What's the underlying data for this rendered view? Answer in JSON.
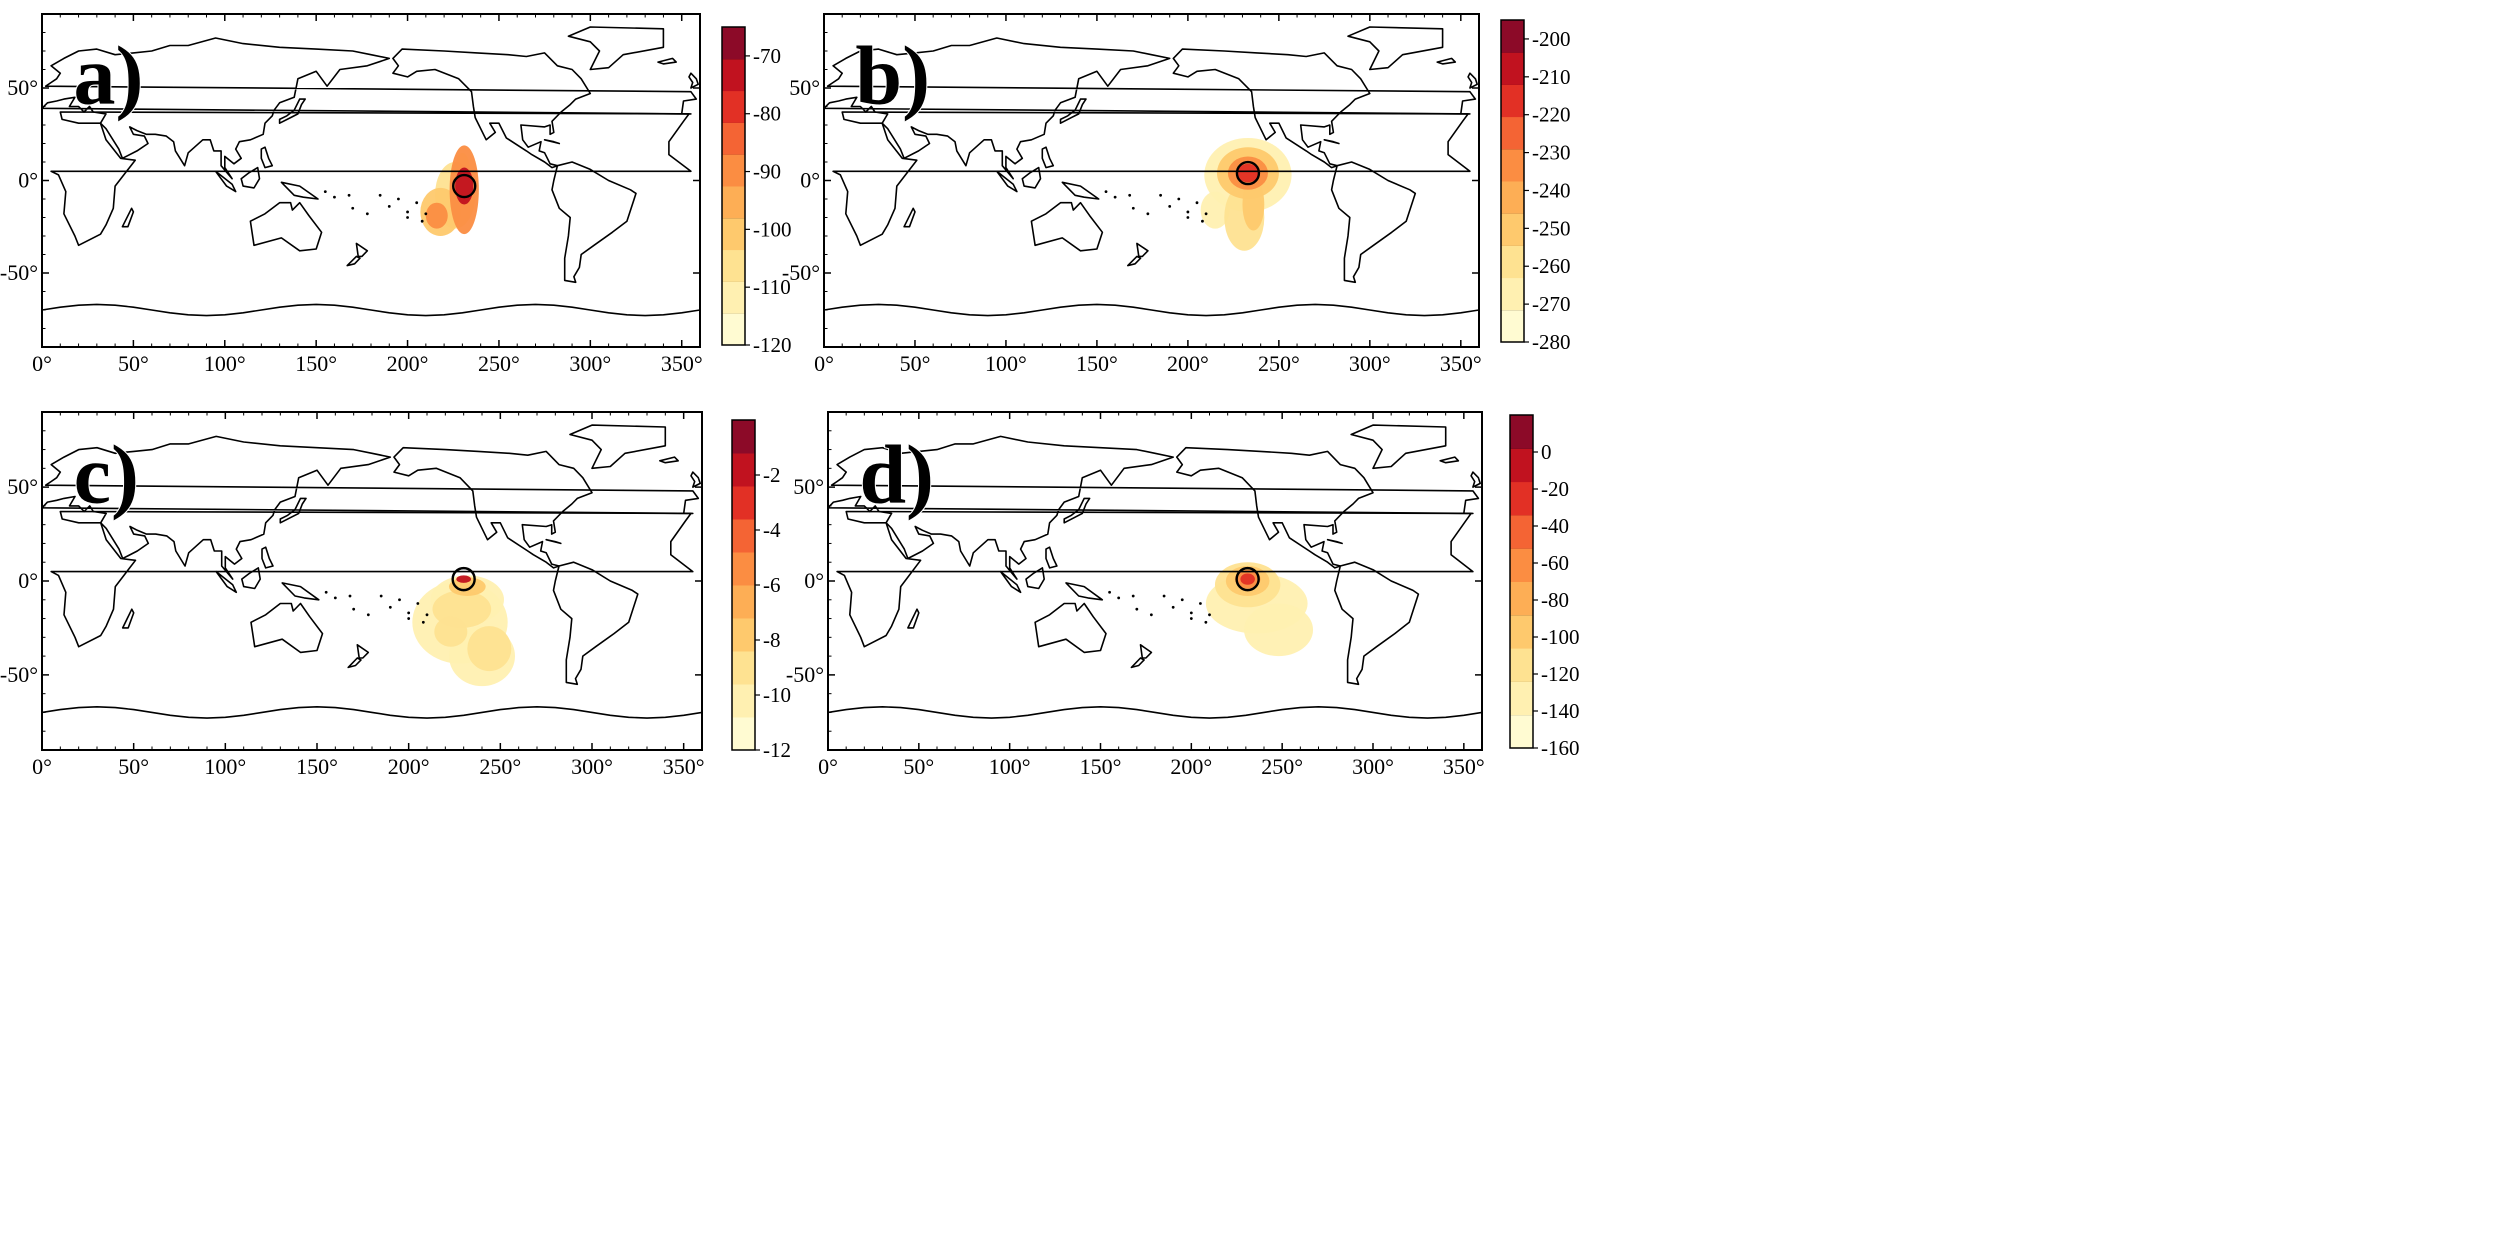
{
  "figure": {
    "x_ticks": [
      "0°",
      "50°",
      "100°",
      "150°",
      "200°",
      "250°",
      "300°",
      "350°"
    ],
    "y_ticks": [
      "50°",
      "0°",
      "-50°"
    ],
    "x_tick_values": [
      0,
      50,
      100,
      150,
      200,
      250,
      300,
      350
    ],
    "y_tick_values": [
      50,
      0,
      -50
    ],
    "lon_range": [
      0,
      360
    ],
    "lat_range": [
      -90,
      90
    ],
    "colormap": [
      "#fffbd2",
      "#fff0b1",
      "#fee291",
      "#fec96d",
      "#fdae55",
      "#fb8d42",
      "#f46434",
      "#e23025",
      "#c1121f",
      "#8c0a28"
    ]
  },
  "panels": [
    {
      "id": "a",
      "label": "a)",
      "colorbar_ticks": [
        "-70",
        "-80",
        "-90",
        "-100",
        "-110",
        "-120"
      ],
      "colorbar_values": [
        -70,
        -80,
        -90,
        -100,
        -110,
        -120
      ],
      "colorbar_range": [
        -120,
        -65
      ],
      "marker": {
        "lon": 231,
        "lat": -3
      },
      "field": [
        {
          "lon": 231,
          "lat": -5,
          "rlon": 8,
          "rlat": 24,
          "level": 5
        },
        {
          "lon": 231,
          "lat": -3,
          "rlon": 5,
          "rlat": 10,
          "level": 8
        },
        {
          "lon": 218,
          "lat": -17,
          "rlon": 11,
          "rlat": 13,
          "level": 3
        },
        {
          "lon": 216,
          "lat": -19,
          "rlon": 6,
          "rlat": 7,
          "level": 5
        },
        {
          "lon": 226,
          "lat": -8,
          "rlon": 11,
          "rlat": 18,
          "level": 2
        },
        {
          "lon": 230,
          "lat": 6,
          "rlon": 4,
          "rlat": 9,
          "level": 1
        }
      ]
    },
    {
      "id": "b",
      "label": "b)",
      "colorbar_ticks": [
        "-200",
        "-210",
        "-220",
        "-230",
        "-240",
        "-250",
        "-260",
        "-270",
        "-280"
      ],
      "colorbar_values": [
        -200,
        -210,
        -220,
        -230,
        -240,
        -250,
        -260,
        -270,
        -280
      ],
      "colorbar_range": [
        -280,
        -195
      ],
      "marker": {
        "lon": 233,
        "lat": 4
      },
      "field": [
        {
          "lon": 233,
          "lat": 3,
          "rlon": 24,
          "rlat": 20,
          "level": 1
        },
        {
          "lon": 233,
          "lat": 4,
          "rlon": 17,
          "rlat": 14,
          "level": 3
        },
        {
          "lon": 233,
          "lat": 4,
          "rlon": 11,
          "rlat": 9,
          "level": 5
        },
        {
          "lon": 233,
          "lat": 4,
          "rlon": 6,
          "rlat": 5,
          "level": 7
        },
        {
          "lon": 231,
          "lat": -20,
          "rlon": 11,
          "rlat": 18,
          "level": 2
        },
        {
          "lon": 215,
          "lat": -16,
          "rlon": 8,
          "rlat": 10,
          "level": 1
        },
        {
          "lon": 236,
          "lat": -13,
          "rlon": 6,
          "rlat": 14,
          "level": 3
        }
      ]
    },
    {
      "id": "c",
      "label": "c)",
      "colorbar_ticks": [
        "-2",
        "-4",
        "-6",
        "-8",
        "-10",
        "-12"
      ],
      "colorbar_values": [
        -2,
        -4,
        -6,
        -8,
        -10,
        -12
      ],
      "colorbar_range": [
        -12,
        0
      ],
      "marker": {
        "lon": 230,
        "lat": 1
      },
      "field": [
        {
          "lon": 228,
          "lat": -22,
          "rlon": 26,
          "rlat": 22,
          "level": 1
        },
        {
          "lon": 240,
          "lat": -40,
          "rlon": 18,
          "rlat": 16,
          "level": 1
        },
        {
          "lon": 232,
          "lat": -10,
          "rlon": 20,
          "rlat": 13,
          "level": 1
        },
        {
          "lon": 229,
          "lat": -15,
          "rlon": 16,
          "rlat": 10,
          "level": 2
        },
        {
          "lon": 244,
          "lat": -36,
          "rlon": 12,
          "rlat": 12,
          "level": 2
        },
        {
          "lon": 223,
          "lat": -27,
          "rlon": 9,
          "rlat": 8,
          "level": 2
        },
        {
          "lon": 232,
          "lat": -3,
          "rlon": 10,
          "rlat": 5,
          "level": 3
        },
        {
          "lon": 230,
          "lat": 1,
          "rlon": 4,
          "rlat": 2,
          "level": 8
        }
      ]
    },
    {
      "id": "d",
      "label": "d)",
      "colorbar_ticks": [
        "0",
        "-20",
        "-40",
        "-60",
        "-80",
        "-100",
        "-120",
        "-140",
        "-160"
      ],
      "colorbar_values": [
        0,
        -20,
        -40,
        -60,
        -80,
        -100,
        -120,
        -140,
        -160
      ],
      "colorbar_range": [
        -160,
        20
      ],
      "marker": {
        "lon": 231,
        "lat": 1
      },
      "field": [
        {
          "lon": 236,
          "lat": -12,
          "rlon": 28,
          "rlat": 16,
          "level": 1
        },
        {
          "lon": 248,
          "lat": -26,
          "rlon": 19,
          "rlat": 14,
          "level": 1
        },
        {
          "lon": 231,
          "lat": -2,
          "rlon": 18,
          "rlat": 12,
          "level": 2
        },
        {
          "lon": 231,
          "lat": 0,
          "rlon": 12,
          "rlat": 8,
          "level": 3
        },
        {
          "lon": 231,
          "lat": 1,
          "rlon": 7,
          "rlat": 5,
          "level": 5
        },
        {
          "lon": 231,
          "lat": 1,
          "rlon": 4,
          "rlat": 3,
          "level": 7
        }
      ]
    }
  ]
}
